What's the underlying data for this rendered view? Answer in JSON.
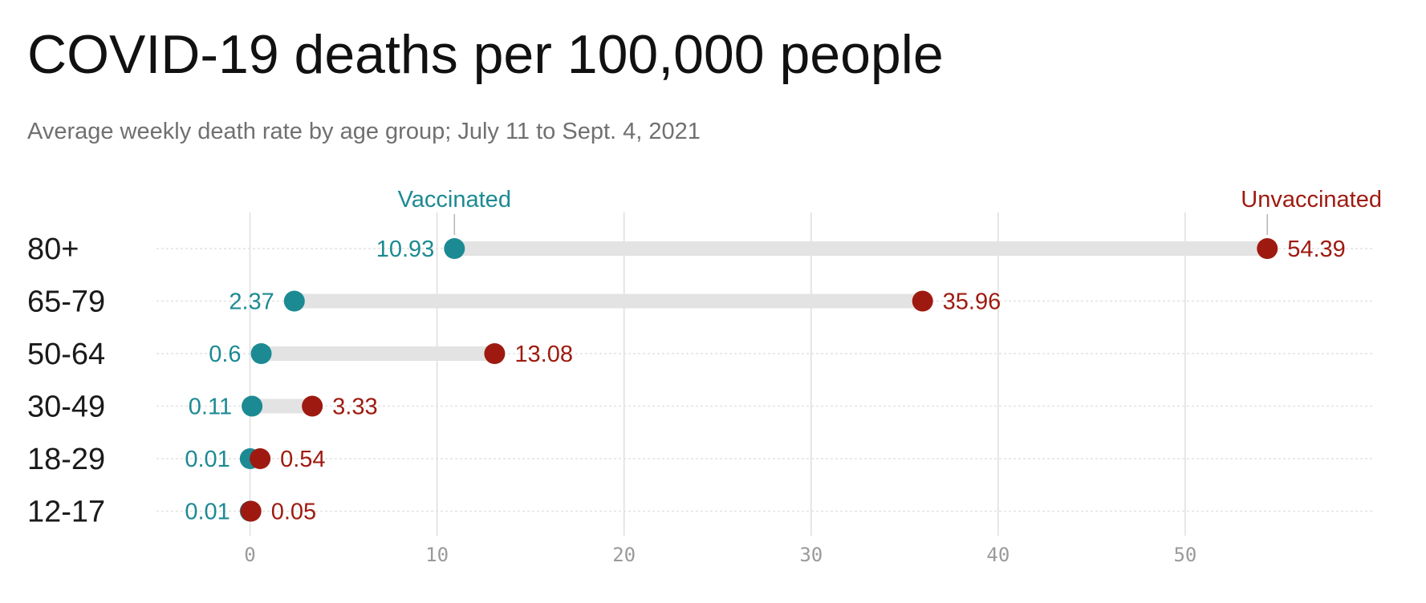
{
  "chart_data": {
    "type": "dot-range",
    "title": "COVID-19 deaths per 100,000 people",
    "subtitle": "Average weekly death rate by age group; July 11 to Sept. 4, 2021",
    "categories": [
      "80+",
      "65-79",
      "50-64",
      "30-49",
      "18-29",
      "12-17"
    ],
    "series": [
      {
        "name": "Vaccinated",
        "color": "#1c8a93",
        "values": [
          10.93,
          2.37,
          0.6,
          0.11,
          0.01,
          0.01
        ],
        "labels": [
          "10.93",
          "2.37",
          "0.6",
          "0.11",
          "0.01",
          "0.01"
        ]
      },
      {
        "name": "Unvaccinated",
        "color": "#9e1a10",
        "values": [
          54.39,
          35.96,
          13.08,
          3.33,
          0.54,
          0.05
        ],
        "labels": [
          "54.39",
          "35.96",
          "13.08",
          "3.33",
          "0.54",
          "0.05"
        ]
      }
    ],
    "x_ticks": [
      0,
      10,
      20,
      30,
      40,
      50
    ],
    "xlim": [
      -5,
      60
    ],
    "xlabel": "",
    "ylabel": "",
    "grid": true,
    "legend": "direct labels above first row"
  }
}
